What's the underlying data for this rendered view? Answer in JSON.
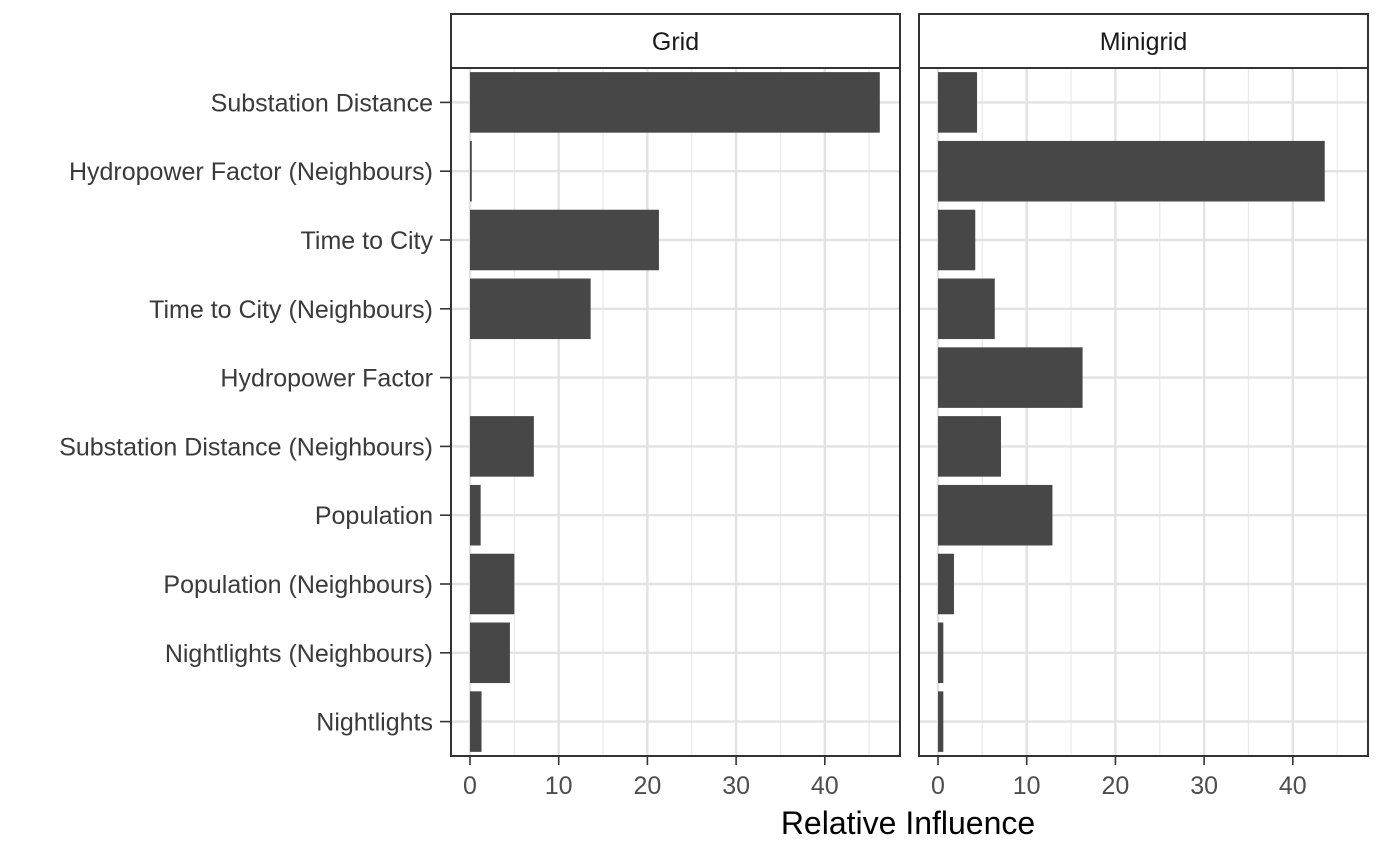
{
  "chart_data": {
    "type": "bar",
    "orientation": "horizontal",
    "xlabel": "Relative Influence",
    "ylabel": "",
    "xlim": [
      0,
      48
    ],
    "x_ticks": [
      0,
      10,
      20,
      30,
      40
    ],
    "grid": true,
    "legend": "none",
    "bar_color": "#474747",
    "categories": [
      "Substation Distance",
      "Hydropower Factor (Neighbours)",
      "Time to City",
      "Time to City (Neighbours)",
      "Hydropower Factor",
      "Substation Distance (Neighbours)",
      "Population",
      "Population (Neighbours)",
      "Nightlights (Neighbours)",
      "Nightlights"
    ],
    "panels": [
      {
        "name": "Grid",
        "values": [
          46.2,
          0.2,
          21.3,
          13.6,
          0.0,
          7.2,
          1.2,
          5.0,
          4.5,
          1.3
        ]
      },
      {
        "name": "Minigrid",
        "values": [
          4.4,
          43.6,
          4.2,
          6.4,
          16.3,
          7.1,
          12.9,
          1.8,
          0.6,
          0.6
        ]
      }
    ]
  }
}
